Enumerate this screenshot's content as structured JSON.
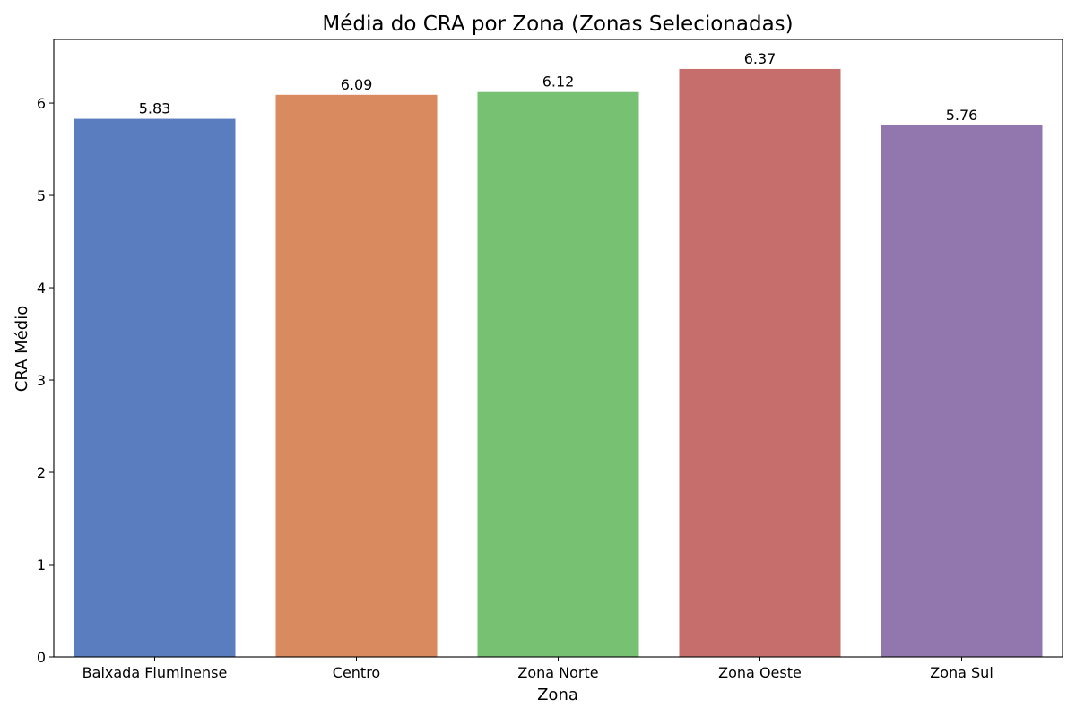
{
  "chart_data": {
    "type": "bar",
    "title": "Média do CRA por Zona  (Zonas Selecionadas)",
    "xlabel": "Zona",
    "ylabel": "CRA Médio",
    "categories": [
      "Baixada Fluminense",
      "Centro",
      "Zona Norte",
      "Zona Oeste",
      "Zona Sul"
    ],
    "values": [
      5.83,
      6.09,
      6.12,
      6.37,
      5.76
    ],
    "value_labels": [
      "5.83",
      "6.09",
      "6.12",
      "6.37",
      "5.76"
    ],
    "colors": [
      "#5a7dbf",
      "#d98b5f",
      "#77c172",
      "#c56e6c",
      "#9277ae"
    ],
    "ylim": [
      0,
      6.69
    ],
    "yticks": [
      0,
      1,
      2,
      3,
      4,
      5,
      6
    ],
    "grid": false,
    "legend": "none"
  }
}
